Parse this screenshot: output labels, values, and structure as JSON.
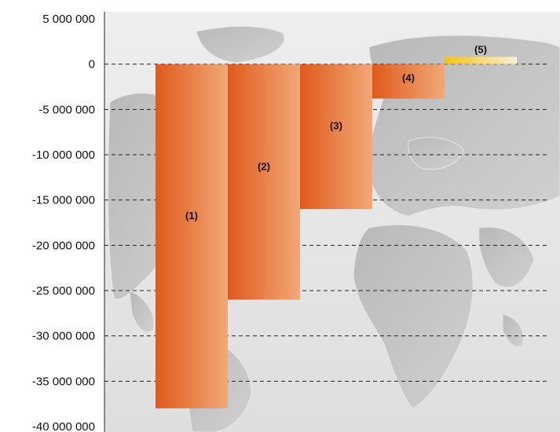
{
  "chart_data": {
    "type": "bar",
    "title": "",
    "xlabel": "",
    "ylabel": "",
    "ylim": [
      -40000000,
      5000000
    ],
    "yticks": [
      5000000,
      0,
      -5000000,
      -10000000,
      -15000000,
      -20000000,
      -25000000,
      -30000000,
      -35000000,
      -40000000
    ],
    "ytick_labels": [
      "5 000 000",
      "0",
      "-5 000 000",
      "-10 000 000",
      "-15 000 000",
      "-20 000 000",
      "-25 000 000",
      "-30 000 000",
      "-35 000 000",
      "-40 000 000"
    ],
    "grid": "dashed horizontal",
    "background": "world map (grey)",
    "categories": [
      "(1)",
      "(2)",
      "(3)",
      "(4)",
      "(5)"
    ],
    "values": [
      -38000000,
      -26000000,
      -16000000,
      -3800000,
      800000
    ],
    "colors": [
      "#e05a1c",
      "#e05a1c",
      "#e05a1c",
      "#e05a1c",
      "#f2c21a"
    ],
    "colors_light": [
      "#f2a877",
      "#f2a877",
      "#f2a877",
      "#f2a877",
      "#fbf0d2"
    ]
  }
}
